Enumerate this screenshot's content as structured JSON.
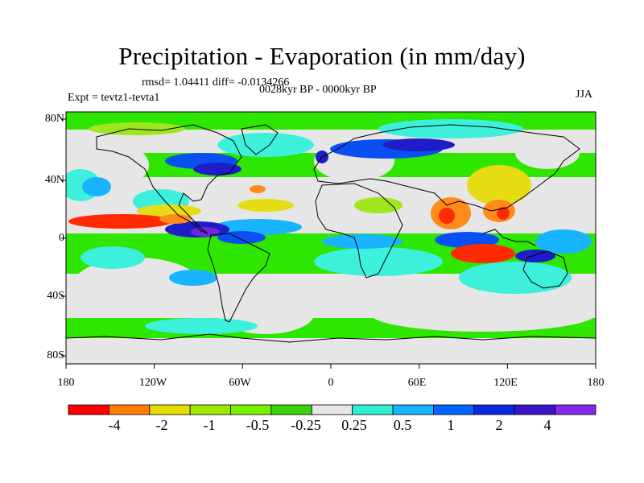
{
  "title": "Precipitation - Evaporation (in mm/day)",
  "stats_text": "rmsd= 1.04411 diff= -0.0134266",
  "period_text": "0028kyr BP - 0000kyr BP",
  "experiment_text": "Expt = tevtz1-tevta1",
  "season": "JJA",
  "lat_labels": [
    "80N",
    "40N",
    "0",
    "40S",
    "80S"
  ],
  "lon_labels": [
    "180",
    "120W",
    "60W",
    "0",
    "60E",
    "120E",
    "180"
  ],
  "colorbar": {
    "colors": [
      "#ff0000",
      "#ff8000",
      "#e6dc00",
      "#a0e600",
      "#78f000",
      "#3cd20a",
      "#e6e6e6",
      "#2ef0d2",
      "#14b4ff",
      "#0064ff",
      "#0a28dc",
      "#3c14c8",
      "#8228e6"
    ],
    "labels": [
      "-4",
      "-2",
      "-1",
      "-0.5",
      "-0.25",
      "0.25",
      "0.5",
      "1",
      "2",
      "4"
    ]
  },
  "field_colors": {
    "neutral": "#e6e6e6",
    "red": "#ff2a00",
    "orange": "#ff8c1a",
    "yellow": "#e6dc14",
    "lime": "#a0e61e",
    "green": "#2ee600",
    "cyan": "#3cf0dc",
    "lightblue": "#19b4ff",
    "blue": "#0a50f0",
    "darkblue": "#1e1ec8",
    "purple": "#6e28dc"
  }
}
